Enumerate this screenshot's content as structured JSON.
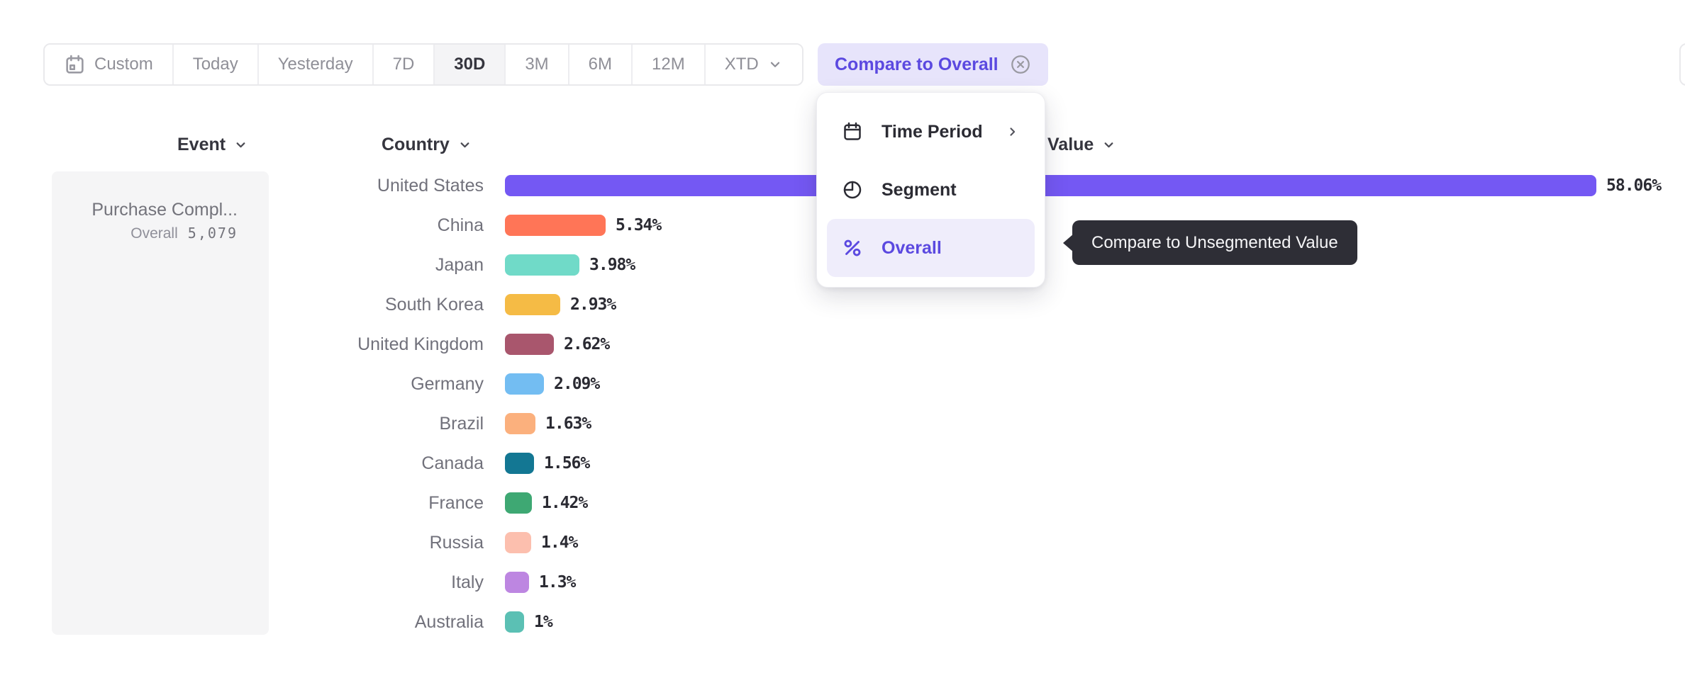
{
  "toolbar": {
    "time_buttons": [
      {
        "label": "Custom",
        "icon": "calendar-icon"
      },
      {
        "label": "Today"
      },
      {
        "label": "Yesterday"
      },
      {
        "label": "7D"
      },
      {
        "label": "30D",
        "selected": true
      },
      {
        "label": "3M"
      },
      {
        "label": "6M"
      },
      {
        "label": "12M"
      },
      {
        "label": "XTD",
        "chevron": true
      }
    ],
    "compare_button": {
      "label": "Compare to Overall",
      "close_icon": "circle-x-icon"
    }
  },
  "columns": {
    "event": "Event",
    "country": "Country",
    "value": "Value"
  },
  "event_panel": {
    "title": "Purchase Compl...",
    "overall_label": "Overall",
    "overall_value": "5,079"
  },
  "menu": {
    "items": [
      {
        "label": "Time Period",
        "icon": "calendar-icon",
        "has_submenu": true
      },
      {
        "label": "Segment",
        "icon": "segment-icon"
      },
      {
        "label": "Overall",
        "icon": "percent-icon",
        "selected": true
      }
    ]
  },
  "tooltip": {
    "text": "Compare to Unsegmented Value"
  },
  "chart_data": {
    "type": "bar",
    "orientation": "horizontal",
    "title": "",
    "xlabel": "",
    "ylabel": "Country",
    "categories": [
      "United States",
      "China",
      "Japan",
      "South Korea",
      "United Kingdom",
      "Germany",
      "Brazil",
      "Canada",
      "France",
      "Russia",
      "Italy",
      "Australia"
    ],
    "values": [
      58.06,
      5.34,
      3.98,
      2.93,
      2.62,
      2.09,
      1.63,
      1.56,
      1.42,
      1.4,
      1.3,
      1
    ],
    "value_labels": [
      "58.06%",
      "5.34%",
      "3.98%",
      "2.93%",
      "2.62%",
      "2.09%",
      "1.63%",
      "1.56%",
      "1.42%",
      "1.4%",
      "1.3%",
      "1%"
    ],
    "colors": [
      "#7458F3",
      "#FF7557",
      "#70DAC8",
      "#F5BB45",
      "#A9566D",
      "#73BDF2",
      "#FBB07D",
      "#137793",
      "#3EA873",
      "#FCBFAE",
      "#BD86E1",
      "#5BC0B4"
    ],
    "xlim": [
      0,
      60
    ],
    "grid": false,
    "legend": false
  },
  "colors": {
    "accent_purple": "#5B49E0",
    "compare_chip_bg": "#E7E4FB",
    "menu_highlight_bg": "#EFEDFB",
    "tooltip_bg": "#2E2E36",
    "selected_button_bg": "#F4F4F6",
    "panel_bg": "#F5F5F6"
  }
}
